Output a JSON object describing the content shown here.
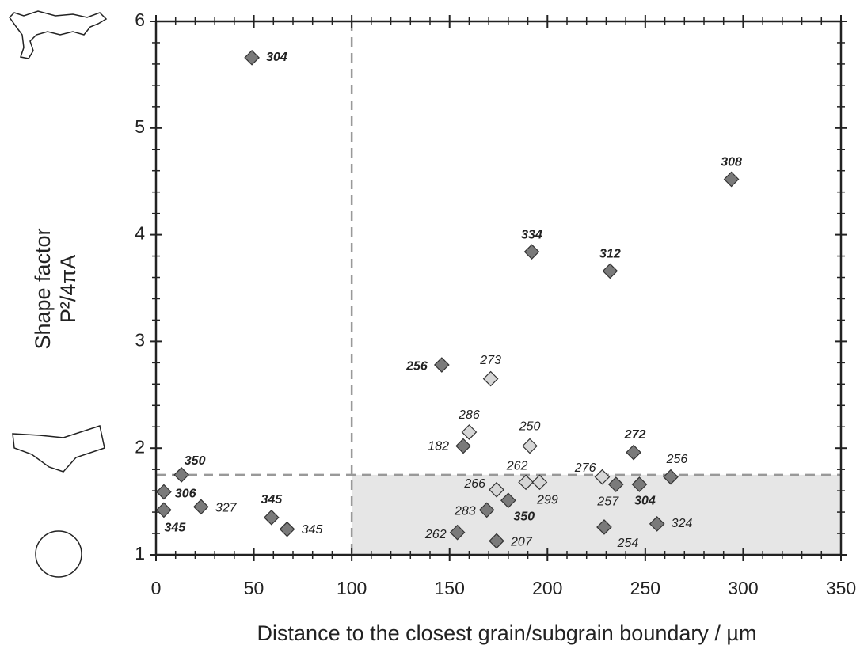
{
  "chart_data": {
    "type": "scatter",
    "x_label": "Distance to the closest grain/subgrain boundary / µm",
    "y_label": [
      "Shape factor",
      "P²/4πA"
    ],
    "xlim": [
      0,
      350
    ],
    "ylim": [
      1,
      6
    ],
    "xticks": [
      0,
      50,
      100,
      150,
      200,
      250,
      300,
      350
    ],
    "yticks": [
      1,
      2,
      3,
      4,
      5,
      6
    ],
    "minor_intervals_per_major": 5,
    "vlines": [
      100
    ],
    "hlines": [
      1.75
    ],
    "shaded_region": {
      "x": [
        100,
        350
      ],
      "y": [
        1,
        1.75
      ],
      "color": "#e6e6e6"
    },
    "reference_line_color": "#999999",
    "series": [
      {
        "color": "#7a7a7a",
        "x": [
          49,
          294,
          192,
          232,
          146,
          157,
          244,
          13,
          4,
          4,
          23,
          59,
          67,
          180,
          169,
          154,
          174,
          235,
          247,
          263,
          229,
          256
        ],
        "values": [
          5.66,
          4.52,
          3.84,
          3.66,
          2.78,
          2.02,
          1.96,
          1.75,
          1.59,
          1.42,
          1.45,
          1.35,
          1.24,
          1.51,
          1.42,
          1.21,
          1.13,
          1.66,
          1.66,
          1.73,
          1.26,
          1.29
        ],
        "point_labels": [
          "304",
          "308",
          "334",
          "312",
          "256",
          "182",
          "272",
          "350",
          "306",
          "345",
          "327",
          "345",
          "345",
          "350",
          "283",
          "262",
          "207",
          "257",
          "304",
          "256",
          "254",
          "324"
        ],
        "label_bold": [
          true,
          true,
          true,
          true,
          true,
          false,
          true,
          true,
          true,
          true,
          false,
          true,
          false,
          true,
          false,
          false,
          false,
          false,
          true,
          false,
          false,
          false
        ]
      },
      {
        "color": "#d6d6d6",
        "x": [
          171,
          160,
          191,
          174,
          189,
          196,
          228
        ],
        "values": [
          2.65,
          2.15,
          2.02,
          1.61,
          1.68,
          1.68,
          1.73
        ],
        "point_labels": [
          "273",
          "286",
          "250",
          "266",
          "262",
          "299",
          "276"
        ],
        "label_bold": [
          false,
          false,
          false,
          false,
          false,
          false,
          false
        ]
      }
    ]
  }
}
